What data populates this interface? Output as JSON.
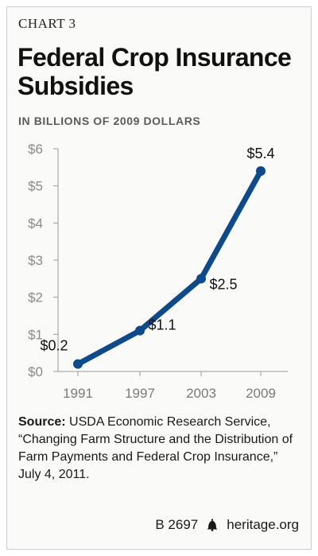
{
  "header": {
    "chart_number": "CHART 3",
    "title": "Federal Crop Insurance Subsidies",
    "subtitle": "IN BILLIONS OF 2009 DOLLARS"
  },
  "chart_data": {
    "type": "line",
    "title": "Federal Crop Insurance Subsidies",
    "subtitle": "IN BILLIONS OF 2009 DOLLARS",
    "categories": [
      "1991",
      "1997",
      "2003",
      "2009"
    ],
    "series": [
      {
        "values": [
          0.2,
          1.1,
          2.5,
          5.4
        ],
        "color": "#0b4a8c"
      }
    ],
    "data_labels": [
      "$0.2",
      "$1.1",
      "$2.5",
      "$5.4"
    ],
    "y_ticks": [
      0,
      1,
      2,
      3,
      4,
      5,
      6
    ],
    "y_tick_labels": [
      "$0",
      "$1",
      "$2",
      "$3",
      "$4",
      "$5",
      "$6"
    ],
    "ylim": [
      0,
      6
    ],
    "grid": false
  },
  "source": {
    "label": "Source:",
    "text": "USDA Economic Research Service, “Changing Farm Structure and the Distribution of Farm Payments and Federal Crop Insurance,” July 4, 2011."
  },
  "footer": {
    "report_id": "B 2697",
    "site": "heritage.org"
  }
}
